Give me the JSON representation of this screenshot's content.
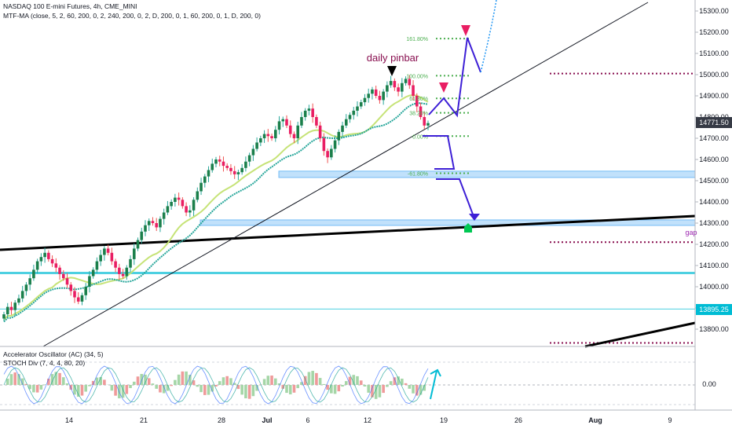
{
  "header": {
    "symbol_line": "NASDAQ 100 E-mini Futures, 4h, CME_MINI",
    "indicator_line": "MTF-MA (close, 5, 2, 60, 200, 0, 2, 240, 200, 0, 2, D, 200, 0, 1, 60, 200, 0, 1, D, 200, 0)"
  },
  "oscillator_pane": {
    "label1": "Accelerator Oscillator (AC) (34, 5)",
    "label2": "STOCH Div (7, 4, 4, 80, 20)",
    "zero_label": "0.00"
  },
  "annotations": {
    "pinbar": "daily pinbar",
    "gap": "gap"
  },
  "fib_levels": [
    {
      "label": "161.80%",
      "price": 15170
    },
    {
      "label": "100.00%",
      "price": 14995
    },
    {
      "label": "61.80%",
      "price": 14888
    },
    {
      "label": "38.20%",
      "price": 14820
    },
    {
      "label": "0.00%",
      "price": 14710
    },
    {
      "label": "-61.80%",
      "price": 14535
    }
  ],
  "price_badges": {
    "current": "14771.50",
    "level": "13895.25"
  },
  "chart_data": {
    "type": "candlestick",
    "timeframe": "4h",
    "y_axis": {
      "ticks": [
        15300,
        15200,
        15100,
        15000,
        14900,
        14800,
        14700,
        14600,
        14500,
        14400,
        14300,
        14200,
        14100,
        14000,
        13900,
        13800
      ],
      "tick_labels": [
        "15300.00",
        "15200.00",
        "15100.00",
        "15000.00",
        "14900.00",
        "14800.00",
        "14700.00",
        "14600.00",
        "14500.00",
        "14400.00",
        "14300.00",
        "14200.00",
        "14100.00",
        "14000.00",
        "13900.00",
        "13800.00"
      ],
      "range": [
        13720,
        15360
      ]
    },
    "x_axis": {
      "tick_labels": [
        "14",
        "21",
        "28",
        "Jul",
        "6",
        "12",
        "19",
        "26",
        "Aug",
        "9"
      ]
    },
    "zones": [
      {
        "from": 14515,
        "to": 14545
      },
      {
        "from": 14290,
        "to": 14315
      }
    ],
    "horizontal_levels": [
      14065,
      13895
    ],
    "target_levels": [
      15005,
      14210,
      13735
    ],
    "close_path": [
      13870,
      13905,
      13890,
      13925,
      13945,
      13980,
      14010,
      14040,
      14080,
      14120,
      14140,
      14160,
      14130,
      14110,
      14090,
      14060,
      14040,
      14010,
      13980,
      13950,
      13930,
      13960,
      14000,
      14050,
      14080,
      14120,
      14150,
      14180,
      14160,
      14120,
      14090,
      14060,
      14050,
      14090,
      14130,
      14180,
      14220,
      14260,
      14290,
      14310,
      14300,
      14280,
      14320,
      14350,
      14380,
      14400,
      14420,
      14410,
      14380,
      14350,
      14360,
      14410,
      14450,
      14490,
      14520,
      14550,
      14580,
      14600,
      14590,
      14570,
      14560,
      14545,
      14530,
      14540,
      14560,
      14590,
      14620,
      14650,
      14680,
      14700,
      14720,
      14710,
      14700,
      14740,
      14780,
      14790,
      14760,
      14720,
      14700,
      14760,
      14800,
      14830,
      14840,
      14800,
      14760,
      14700,
      14640,
      14610,
      14650,
      14690,
      14730,
      14760,
      14790,
      14810,
      14830,
      14850,
      14870,
      14890,
      14910,
      14930,
      14900,
      14880,
      14920,
      14950,
      14970,
      14940,
      14920,
      14960,
      14980,
      14950,
      14900,
      14850,
      14800,
      14760,
      14771.5
    ]
  }
}
